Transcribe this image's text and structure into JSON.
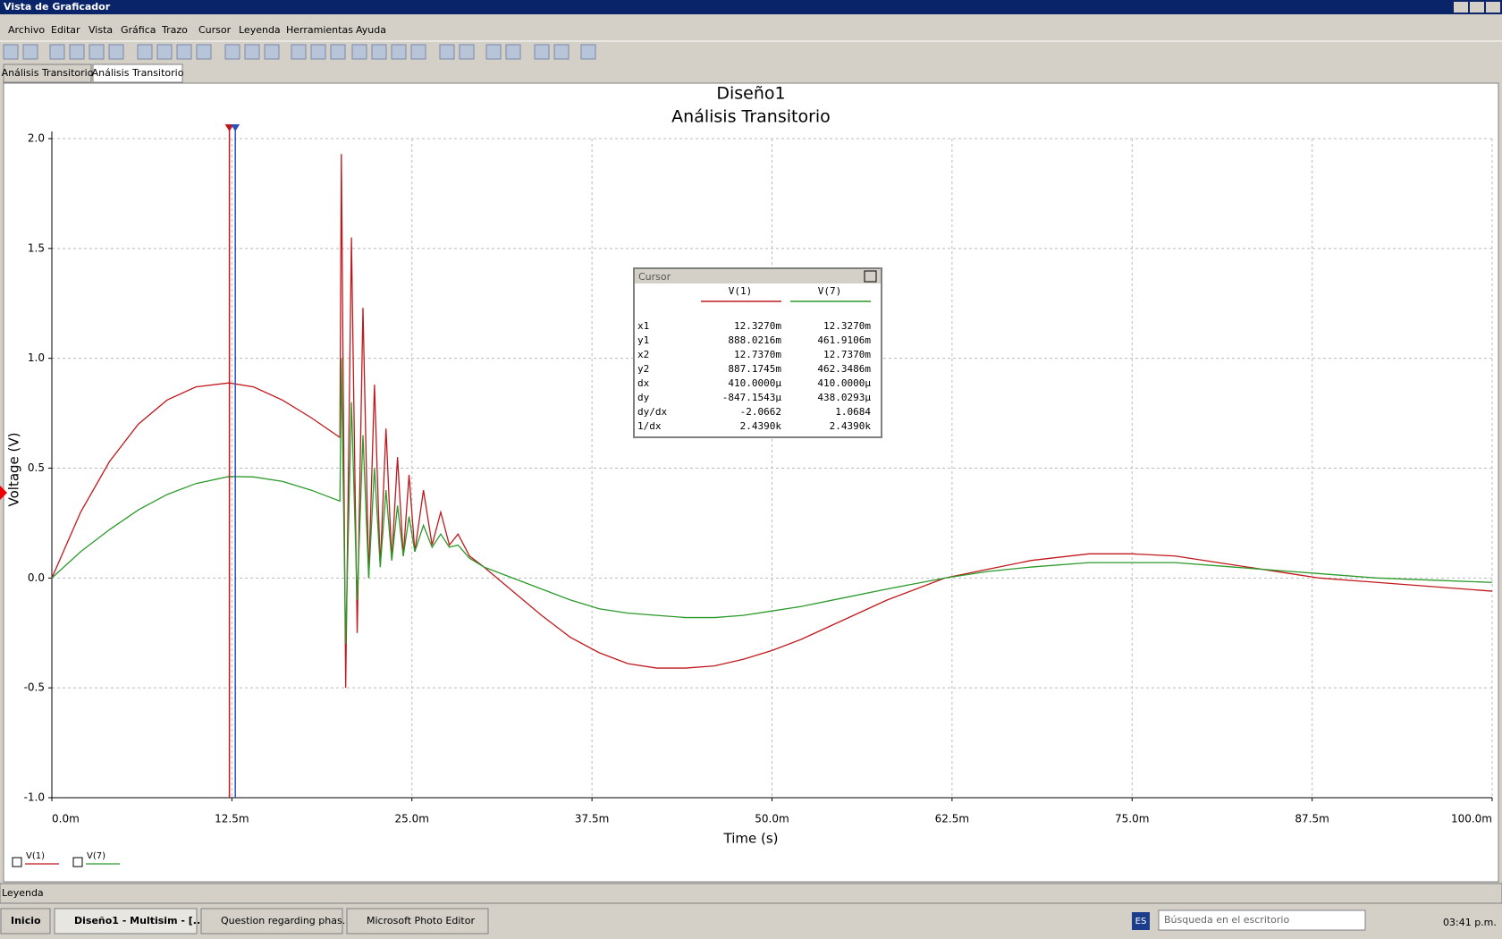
{
  "window": {
    "title": "Vista de Graficador"
  },
  "menu": [
    "Archivo",
    "Editar",
    "Vista",
    "Gráfica",
    "Trazo",
    "Cursor",
    "Leyenda",
    "Herramientas",
    "Ayuda"
  ],
  "tabs": [
    "Análisis Transitorio",
    "Análisis Transitorio"
  ],
  "chart_data": {
    "type": "line",
    "title": "Diseño1",
    "subtitle": "Análisis Transitorio",
    "x_label": "Time (s)",
    "y_label": "Voltage (V)",
    "x": [
      0,
      0.002,
      0.004,
      0.006,
      0.008,
      0.01,
      0.0123,
      0.014,
      0.016,
      0.018,
      0.02,
      0.0201,
      0.0204,
      0.0208,
      0.0212,
      0.0216,
      0.022,
      0.0224,
      0.0228,
      0.0232,
      0.0236,
      0.024,
      0.0244,
      0.0248,
      0.0252,
      0.0258,
      0.0264,
      0.027,
      0.0276,
      0.0282,
      0.029,
      0.03,
      0.032,
      0.034,
      0.036,
      0.038,
      0.04,
      0.042,
      0.044,
      0.046,
      0.048,
      0.05,
      0.052,
      0.055,
      0.058,
      0.062,
      0.065,
      0.068,
      0.072,
      0.075,
      0.078,
      0.082,
      0.086,
      0.088,
      0.092,
      0.096,
      0.1
    ],
    "series": [
      {
        "name": "V(1)",
        "color": "#c0181c",
        "values": [
          0,
          0.3,
          0.53,
          0.7,
          0.81,
          0.87,
          0.888,
          0.87,
          0.81,
          0.73,
          0.64,
          1.93,
          -0.5,
          1.55,
          -0.25,
          1.23,
          0,
          0.88,
          0.05,
          0.68,
          0.08,
          0.55,
          0.1,
          0.47,
          0.12,
          0.4,
          0.15,
          0.3,
          0.15,
          0.2,
          0.1,
          0.05,
          -0.06,
          -0.17,
          -0.27,
          -0.34,
          -0.39,
          -0.41,
          -0.41,
          -0.4,
          -0.37,
          -0.33,
          -0.28,
          -0.19,
          -0.1,
          0,
          0.04,
          0.08,
          0.11,
          0.11,
          0.1,
          0.06,
          0.02,
          0,
          -0.02,
          -0.04,
          -0.06
        ]
      },
      {
        "name": "V(7)",
        "color": "#2a9a2a",
        "values": [
          0,
          0.12,
          0.22,
          0.31,
          0.38,
          0.43,
          0.462,
          0.46,
          0.44,
          0.4,
          0.35,
          1,
          -0.3,
          0.8,
          -0.1,
          0.65,
          0,
          0.5,
          0.05,
          0.4,
          0.08,
          0.33,
          0.1,
          0.28,
          0.12,
          0.24,
          0.14,
          0.2,
          0.14,
          0.15,
          0.09,
          0.05,
          0,
          -0.05,
          -0.1,
          -0.14,
          -0.16,
          -0.17,
          -0.18,
          -0.18,
          -0.17,
          -0.15,
          -0.13,
          -0.09,
          -0.05,
          0,
          0.03,
          0.05,
          0.07,
          0.07,
          0.07,
          0.05,
          0.03,
          0.02,
          0,
          -0.01,
          -0.02
        ]
      }
    ],
    "xlim": [
      0,
      0.1
    ],
    "xticks": [
      {
        "value": 0,
        "label": "0.0m"
      },
      {
        "value": 0.0125,
        "label": "12.5m"
      },
      {
        "value": 0.025,
        "label": "25.0m"
      },
      {
        "value": 0.0375,
        "label": "37.5m"
      },
      {
        "value": 0.05,
        "label": "50.0m"
      },
      {
        "value": 0.0625,
        "label": "62.5m"
      },
      {
        "value": 0.075,
        "label": "75.0m"
      },
      {
        "value": 0.0875,
        "label": "87.5m"
      },
      {
        "value": 0.1,
        "label": "100.0m"
      }
    ],
    "ylim": [
      -1,
      2
    ],
    "yticks": [
      {
        "value": -1,
        "label": "-1.0"
      },
      -0.5,
      {
        "value": 0,
        "label": "0.0"
      },
      0.5,
      {
        "value": 1,
        "label": "1.0"
      },
      1.5,
      {
        "value": 2,
        "label": "2.0"
      }
    ],
    "grid": true,
    "legend": "bottom-left",
    "cursor_x": [
      0.012327,
      0.012737
    ]
  },
  "cursor_panel": {
    "title": "Cursor",
    "columns": [
      "V(1)",
      "V(7)"
    ],
    "rows": [
      [
        "x1",
        "12.3270m",
        "12.3270m"
      ],
      [
        "y1",
        "888.0216m",
        "461.9106m"
      ],
      [
        "x2",
        "12.7370m",
        "12.7370m"
      ],
      [
        "y2",
        "887.1745m",
        "462.3486m"
      ],
      [
        "dx",
        "410.0000µ",
        "410.0000µ"
      ],
      [
        "dy",
        "-847.1543µ",
        "438.0293µ"
      ],
      [
        "dy/dx",
        "-2.0662",
        "1.0684"
      ],
      [
        "1/dx",
        "2.4390k",
        "2.4390k"
      ]
    ]
  },
  "status_bar": "Leyenda",
  "taskbar": {
    "start": "Inicio",
    "items": [
      "Diseño1 - Multisim - [...",
      "Question regarding phas...",
      "Microsoft Photo Editor"
    ],
    "language": "ES",
    "search": "Búsqueda en el escritorio",
    "clock": "03:41 p.m."
  }
}
